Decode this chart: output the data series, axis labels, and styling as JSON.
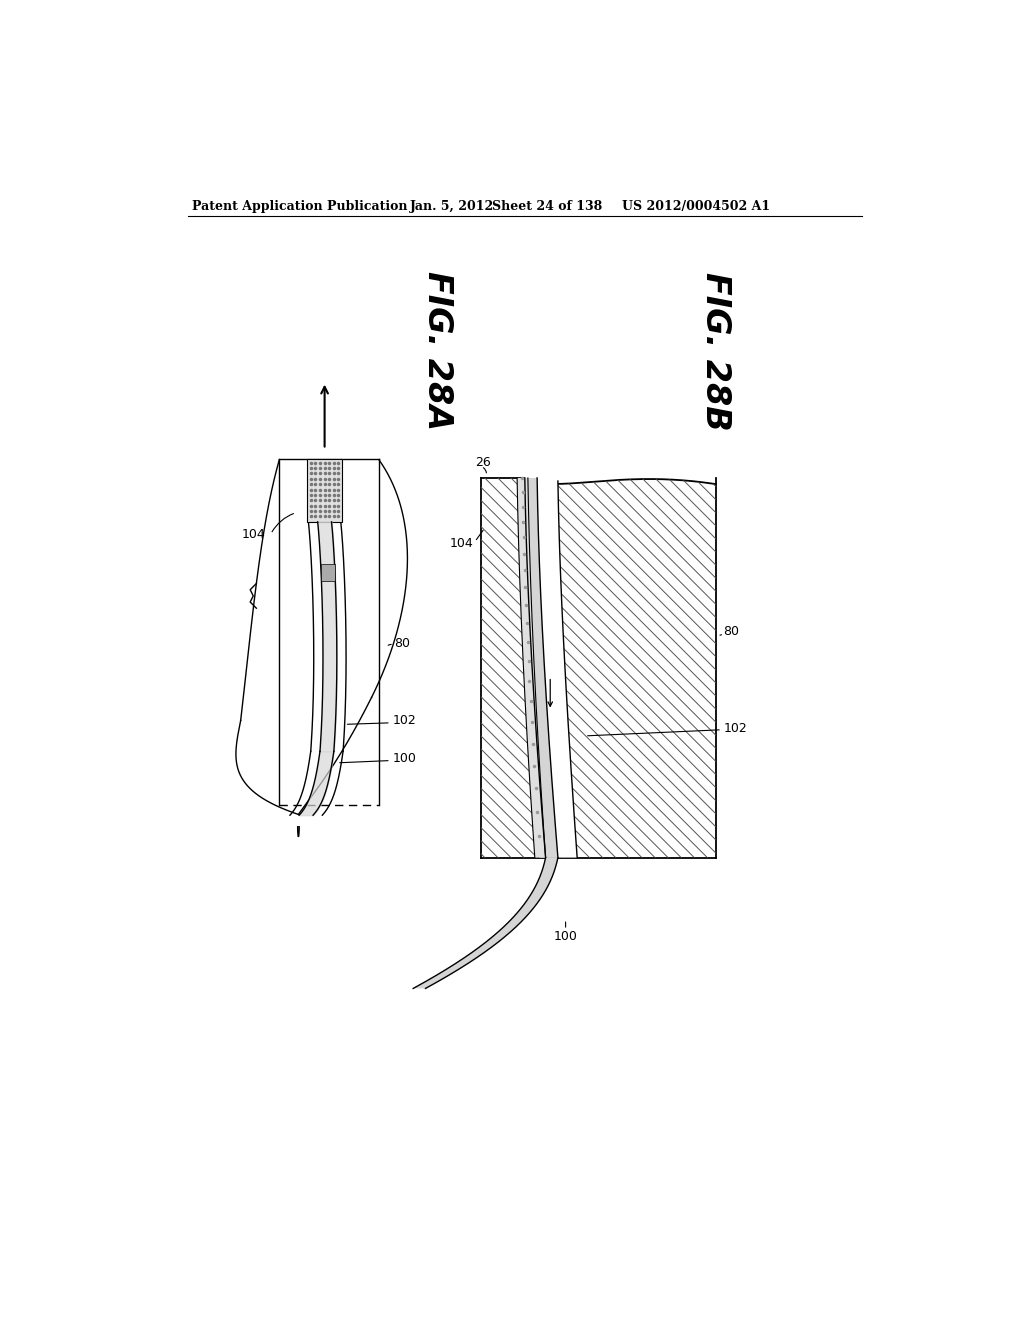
{
  "bg_color": "#ffffff",
  "header_text": "Patent Application Publication",
  "header_date": "Jan. 5, 2012",
  "header_sheet": "Sheet 24 of 138",
  "header_patent": "US 2012/0004502 A1",
  "fig_label_28A": "FIG. 28A",
  "fig_label_28B": "FIG. 28B",
  "label_104": "104",
  "label_80": "80",
  "label_102": "102",
  "label_100": "100",
  "label_26": "26"
}
